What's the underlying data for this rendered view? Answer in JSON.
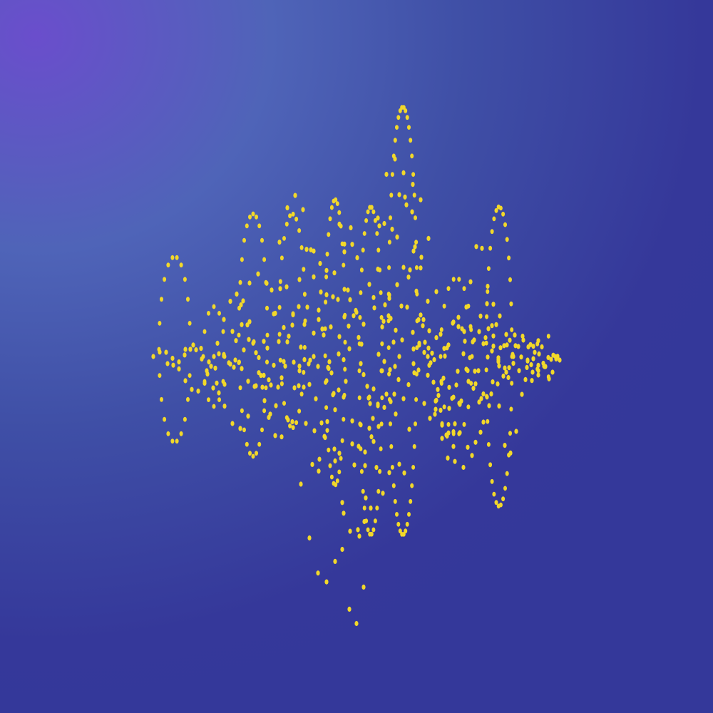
{
  "colors": {
    "background_top_left": "#6a4ecc",
    "background_mid": "#4f64b8",
    "background_bottom": "#34389a",
    "dots": "#f2d82a"
  },
  "artwork": {
    "type": "dotted-waveform-pattern"
  }
}
